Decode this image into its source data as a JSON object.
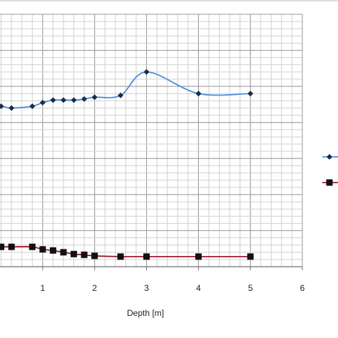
{
  "chart_data": {
    "type": "line",
    "xlabel": "Depth [m]",
    "ylabel": "",
    "xlim": [
      0,
      6
    ],
    "x_ticks": [
      "1",
      "2",
      "3",
      "4",
      "5",
      "6"
    ],
    "grid": true,
    "legend_position": "right",
    "series": [
      {
        "color": "#4a90d9",
        "marker": "diamond",
        "x": [
          0,
          0.2,
          0.4,
          0.8,
          1.0,
          1.2,
          1.4,
          1.6,
          1.8,
          2.0,
          2.5,
          3.0,
          4.0,
          5.0
        ],
        "y": [
          4.45,
          4.45,
          4.4,
          4.45,
          4.55,
          4.62,
          4.62,
          4.62,
          4.65,
          4.7,
          4.75,
          5.4,
          4.8,
          4.8
        ]
      },
      {
        "color": "#9e1b32",
        "marker": "square",
        "x": [
          0,
          0.2,
          0.4,
          0.8,
          1.0,
          1.2,
          1.4,
          1.6,
          1.8,
          2.0,
          2.5,
          3.0,
          4.0,
          5.0
        ],
        "y": [
          0.55,
          0.55,
          0.55,
          0.55,
          0.48,
          0.45,
          0.4,
          0.35,
          0.33,
          0.3,
          0.28,
          0.28,
          0.28,
          0.28
        ]
      }
    ]
  }
}
